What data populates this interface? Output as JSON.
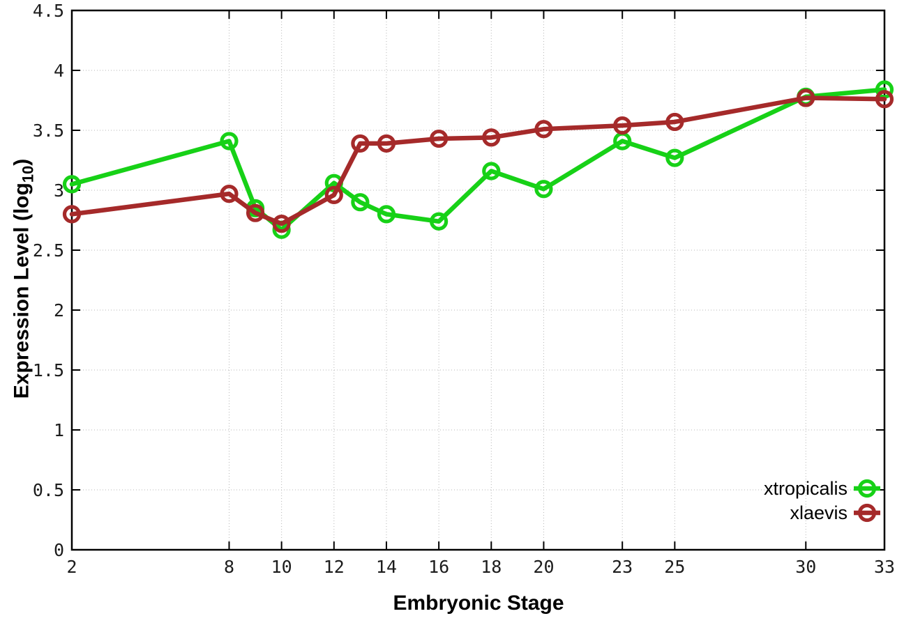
{
  "chart_data": {
    "type": "line",
    "title": "",
    "xlabel": "Embryonic Stage",
    "ylabel": "Expression Level (log10)",
    "ylabel_prefix": "Expression Level (log",
    "ylabel_subscript": "10",
    "ylabel_suffix": ")",
    "x": [
      2,
      8,
      9,
      10,
      12,
      13,
      14,
      16,
      18,
      20,
      23,
      25,
      30,
      33
    ],
    "series": [
      {
        "name": "xtropicalis",
        "color": "#17d117",
        "values": [
          3.05,
          3.41,
          2.85,
          2.67,
          3.06,
          2.9,
          2.8,
          2.74,
          3.16,
          3.01,
          3.41,
          3.27,
          3.78,
          3.84
        ]
      },
      {
        "name": "xlaevis",
        "color": "#a52a2a",
        "values": [
          2.8,
          2.97,
          2.81,
          2.72,
          2.96,
          3.39,
          3.39,
          3.43,
          3.44,
          3.51,
          3.54,
          3.57,
          3.77,
          3.76
        ]
      }
    ],
    "xlim": [
      2,
      33
    ],
    "ylim": [
      0,
      4.5
    ],
    "x_tick_values": [
      2,
      8,
      10,
      12,
      14,
      16,
      18,
      20,
      23,
      25,
      30,
      33
    ],
    "x_tick_labels": [
      "2",
      "8",
      "10",
      "12",
      "14",
      "16",
      "18",
      "20",
      "23",
      "25",
      "30",
      "33"
    ],
    "y_tick_values": [
      0,
      0.5,
      1,
      1.5,
      2,
      2.5,
      3,
      3.5,
      4,
      4.5
    ],
    "y_tick_labels": [
      "0",
      "0.5",
      "1",
      "1.5",
      "2",
      "2.5",
      "3",
      "3.5",
      "4",
      "4.5"
    ],
    "grid": true,
    "grid_color": "#b5b5b5",
    "border_color": "#000000",
    "background_color": "#ffffff",
    "legend_position": "bottom-right"
  }
}
